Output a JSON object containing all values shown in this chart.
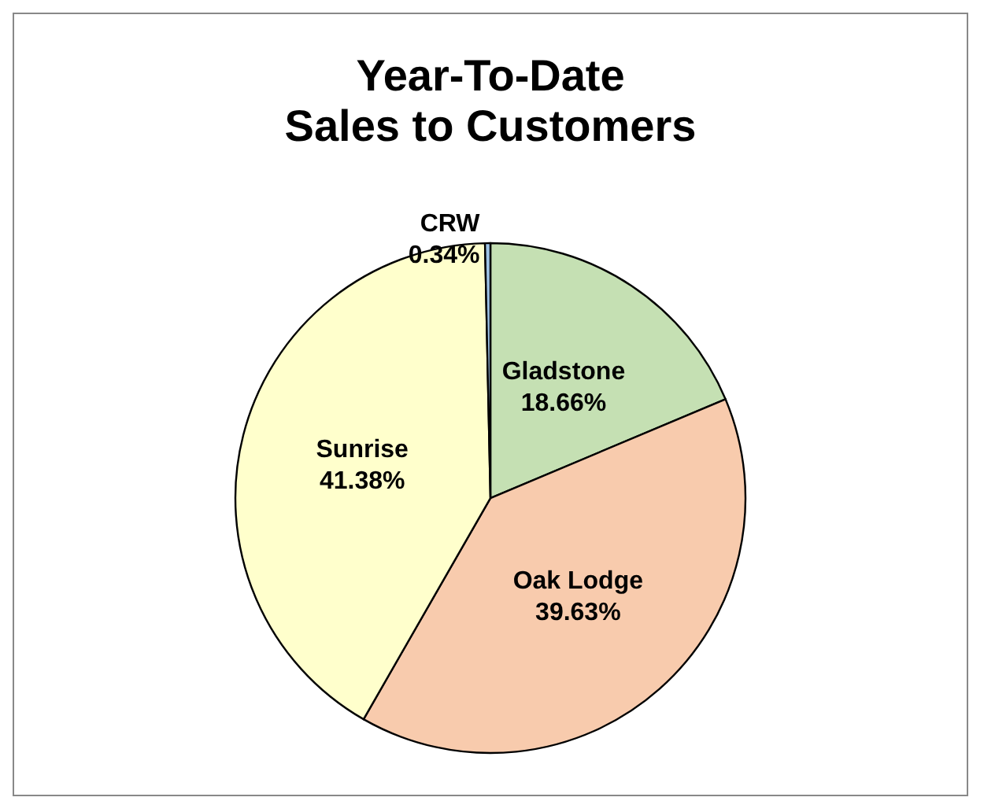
{
  "chart_data": {
    "type": "pie",
    "title": "Year-To-Date\nSales to Customers",
    "categories": [
      "Gladstone",
      "Oak Lodge",
      "Sunrise",
      "CRW"
    ],
    "values": [
      18.66,
      39.63,
      41.38,
      0.34
    ],
    "colors": [
      "#c5e0b3",
      "#f8cbad",
      "#ffffcc",
      "#9dc3e6"
    ],
    "value_labels": [
      "18.66%",
      "39.63%",
      "41.38%",
      "0.34%"
    ],
    "legend": false
  }
}
